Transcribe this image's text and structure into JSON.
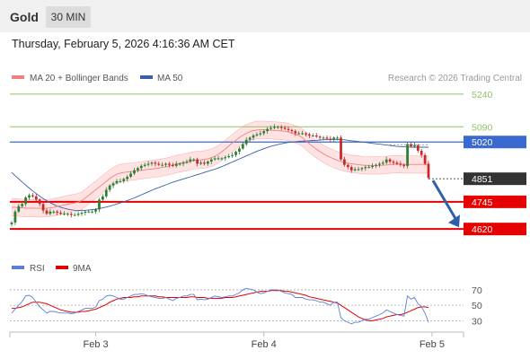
{
  "header": {
    "instrument": "Gold",
    "timeframe": "30 MIN"
  },
  "datetime": "Thursday, February 5, 2026 4:16:36 AM CET",
  "copyright": "Research © 2026 Trading Central",
  "colors": {
    "up": "#2e7d32",
    "down": "#c62828",
    "ma50": "#3a5fa8",
    "ma20": "#f08080",
    "band": "#ffd7d7",
    "resistance": "#8dc36b",
    "support": "#e60000",
    "pivot": "#3a6ad0",
    "last": "#333333",
    "rsi": "#5b7fd6",
    "rsi_ma": "#e00000",
    "arrow": "#2f5fa8"
  },
  "chart_data": [
    {
      "type": "candlestick",
      "legend": [
        {
          "name": "MA 20 + Bollinger Bands",
          "color": "#f08080"
        },
        {
          "name": "MA 50",
          "color": "#3a5fa8"
        }
      ],
      "ylim": [
        4600,
        5285
      ],
      "x_ticks": [
        {
          "label": "Feb 3",
          "index": 24
        },
        {
          "label": "Feb 4",
          "index": 72
        },
        {
          "label": "Feb 5",
          "index": 120
        }
      ],
      "levels": [
        {
          "label": "5240",
          "value": 5240,
          "kind": "resistance"
        },
        {
          "label": "5090",
          "value": 5090,
          "kind": "resistance"
        },
        {
          "label": "5020",
          "value": 5020,
          "kind": "pivot"
        },
        {
          "label": "4851",
          "value": 4851,
          "kind": "last"
        },
        {
          "label": "4745",
          "value": 4745,
          "kind": "support"
        },
        {
          "label": "4620",
          "value": 4620,
          "kind": "support"
        }
      ],
      "forecast_arrow": {
        "from_value": 4851,
        "to_value": 4620
      },
      "series": [
        {
          "name": "Price (close)",
          "values": [
            4650,
            4700,
            4725,
            4735,
            4765,
            4775,
            4770,
            4755,
            4735,
            4705,
            4690,
            4700,
            4700,
            4695,
            4690,
            4690,
            4690,
            4685,
            4685,
            4690,
            4695,
            4700,
            4700,
            4700,
            4710,
            4755,
            4770,
            4800,
            4820,
            4830,
            4840,
            4840,
            4850,
            4860,
            4875,
            4890,
            4900,
            4910,
            4915,
            4920,
            4925,
            4920,
            4915,
            4915,
            4920,
            4915,
            4910,
            4920,
            4920,
            4925,
            4930,
            4940,
            4940,
            4920,
            4925,
            4920,
            4930,
            4940,
            4945,
            4945,
            4945,
            4950,
            4955,
            4960,
            4975,
            4990,
            5010,
            5030,
            5040,
            5050,
            5055,
            5060,
            5070,
            5080,
            5085,
            5090,
            5090,
            5085,
            5080,
            5075,
            5070,
            5060,
            5060,
            5060,
            5055,
            5050,
            5050,
            5045,
            5040,
            5040,
            5035,
            5030,
            5040,
            5040,
            4940,
            4915,
            4905,
            4890,
            4895,
            4895,
            4900,
            4905,
            4905,
            4910,
            4915,
            4920,
            4925,
            4940,
            4930,
            4925,
            4920,
            4915,
            4910,
            5010,
            5000,
            5005,
            4980,
            4960,
            4920,
            4855
          ]
        },
        {
          "name": "MA 20",
          "values": [
            4720,
            4720,
            4718,
            4717,
            4716,
            4716,
            4716,
            4715,
            4715,
            4715,
            4716,
            4717,
            4720,
            4724,
            4727,
            4731,
            4734,
            4737,
            4740,
            4744,
            4750,
            4762,
            4775,
            4788,
            4801,
            4813,
            4826,
            4839,
            4852,
            4863,
            4872,
            4877,
            4880,
            4882,
            4884,
            4886,
            4888,
            4890,
            4892,
            4894,
            4896,
            4898,
            4900,
            4903,
            4906,
            4910,
            4914,
            4918,
            4922,
            4925,
            4928,
            4932,
            4935,
            4937,
            4938,
            4940,
            4943,
            4948,
            4955,
            4964,
            4975,
            4988,
            5002,
            5015,
            5028,
            5040,
            5051,
            5060,
            5067,
            5072,
            5075,
            5076,
            5076,
            5075,
            5074,
            5073,
            5072,
            5071,
            5069,
            5066,
            5061,
            5055,
            5050,
            5040,
            5025,
            5012,
            4999,
            4987,
            4976,
            4966,
            4957,
            4949,
            4942,
            4936,
            4930,
            4926,
            4923,
            4920,
            4918,
            4916,
            4914,
            4913,
            4912,
            4912,
            4912,
            4912,
            4913,
            4914,
            4916,
            4918,
            4918,
            4918,
            4917,
            4917,
            4917,
            4917,
            4917,
            4917,
            4917,
            4917
          ]
        },
        {
          "name": "MA 50",
          "values": [
            4880,
            4865,
            4850,
            4836,
            4822,
            4808,
            4795,
            4783,
            4771,
            4760,
            4750,
            4741,
            4733,
            4726,
            4720,
            4715,
            4711,
            4708,
            4706,
            4705,
            4705,
            4706,
            4707,
            4709,
            4711,
            4714,
            4717,
            4721,
            4725,
            4730,
            4735,
            4740,
            4745,
            4751,
            4757,
            4763,
            4770,
            4777,
            4784,
            4791,
            4798,
            4805,
            4811,
            4817,
            4823,
            4829,
            4835,
            4840,
            4845,
            4850,
            4855,
            4860,
            4865,
            4870,
            4875,
            4880,
            4885,
            4890,
            4895,
            4901,
            4907,
            4914,
            4921,
            4928,
            4935,
            4942,
            4949,
            4956,
            4963,
            4970,
            4977,
            4983,
            4989,
            4995,
            5000,
            5004,
            5008,
            5012,
            5015,
            5018,
            5020,
            5021,
            5023,
            5024,
            5025,
            5026,
            5027,
            5028,
            5029,
            5030,
            5031,
            5032,
            5032,
            5032,
            5031,
            5030,
            5028,
            5026,
            5024,
            5022,
            5020,
            5018,
            5016,
            5014,
            5012,
            5010,
            5008,
            5006,
            5004,
            5002,
            5000,
            4999,
            4998,
            4997,
            4996,
            4996,
            4996,
            4996,
            4996,
            4996
          ]
        }
      ]
    },
    {
      "type": "line",
      "legend": [
        {
          "name": "RSI",
          "color": "#5b7fd6"
        },
        {
          "name": "9MA",
          "color": "#e00000"
        }
      ],
      "ylim": [
        20,
        85
      ],
      "y_ticks": [
        {
          "label": "70",
          "value": 70
        },
        {
          "label": "50",
          "value": 50
        },
        {
          "label": "30",
          "value": 30
        }
      ],
      "series": [
        {
          "name": "RSI",
          "values": [
            40,
            45,
            50,
            55,
            62,
            63,
            60,
            54,
            48,
            44,
            40,
            42,
            42,
            41,
            40,
            40,
            40,
            39,
            40,
            42,
            44,
            46,
            46,
            46,
            48,
            56,
            58,
            62,
            63,
            62,
            60,
            58,
            58,
            60,
            62,
            64,
            64,
            65,
            64,
            62,
            61,
            60,
            59,
            59,
            60,
            58,
            56,
            59,
            60,
            62,
            62,
            64,
            64,
            57,
            58,
            57,
            58,
            60,
            62,
            61,
            60,
            61,
            62,
            62,
            64,
            66,
            70,
            72,
            71,
            70,
            67,
            65,
            66,
            68,
            70,
            70,
            70,
            68,
            66,
            65,
            64,
            60,
            60,
            60,
            58,
            57,
            57,
            56,
            54,
            54,
            52,
            50,
            54,
            54,
            34,
            30,
            28,
            26,
            28,
            28,
            30,
            32,
            32,
            34,
            36,
            38,
            40,
            44,
            42,
            40,
            38,
            37,
            36,
            62,
            58,
            60,
            52,
            48,
            40,
            28
          ]
        },
        {
          "name": "9MA",
          "values": [
            46,
            46,
            47,
            48,
            50,
            52,
            54,
            54,
            54,
            53,
            52,
            50,
            48,
            46,
            44,
            43,
            42,
            41,
            41,
            41,
            42,
            42,
            43,
            44,
            45,
            47,
            49,
            51,
            54,
            56,
            58,
            59,
            60,
            60,
            60,
            61,
            61,
            62,
            62,
            62,
            62,
            62,
            61,
            61,
            60,
            60,
            60,
            60,
            60,
            60,
            60,
            61,
            61,
            60,
            60,
            60,
            59,
            59,
            59,
            59,
            59,
            60,
            60,
            60,
            61,
            62,
            63,
            64,
            65,
            66,
            67,
            68,
            68,
            68,
            69,
            69,
            69,
            69,
            68,
            68,
            67,
            66,
            65,
            64,
            63,
            61,
            60,
            59,
            58,
            57,
            56,
            55,
            54,
            53,
            50,
            47,
            44,
            41,
            38,
            35,
            33,
            31,
            30,
            30,
            31,
            32,
            33,
            35,
            36,
            37,
            38,
            38,
            39,
            41,
            43,
            45,
            47,
            48,
            48,
            47
          ]
        }
      ]
    }
  ]
}
